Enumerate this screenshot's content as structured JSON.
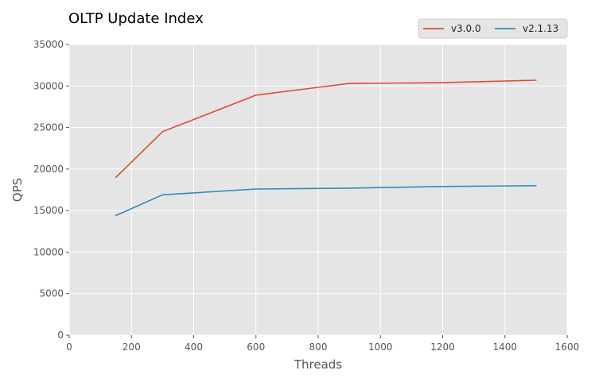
{
  "chart_data": {
    "type": "line",
    "title": "OLTP Update Index",
    "xlabel": "Threads",
    "ylabel": "QPS",
    "xlim": [
      0,
      1600
    ],
    "ylim": [
      0,
      35000
    ],
    "xticks": [
      0,
      200,
      400,
      600,
      800,
      1000,
      1200,
      1400,
      1600
    ],
    "yticks": [
      0,
      5000,
      10000,
      15000,
      20000,
      25000,
      30000,
      35000
    ],
    "grid": true,
    "legend_position": "top-right",
    "series": [
      {
        "name": "v3.0.0",
        "color": "#E24A33",
        "x": [
          150,
          300,
          600,
          900,
          1200,
          1500
        ],
        "values": [
          19000,
          24500,
          28900,
          30300,
          30400,
          30700
        ]
      },
      {
        "name": "v2.1.13",
        "color": "#348ABD",
        "x": [
          150,
          300,
          600,
          900,
          1200,
          1500
        ],
        "values": [
          14400,
          16900,
          17600,
          17700,
          17900,
          18000
        ]
      }
    ]
  }
}
